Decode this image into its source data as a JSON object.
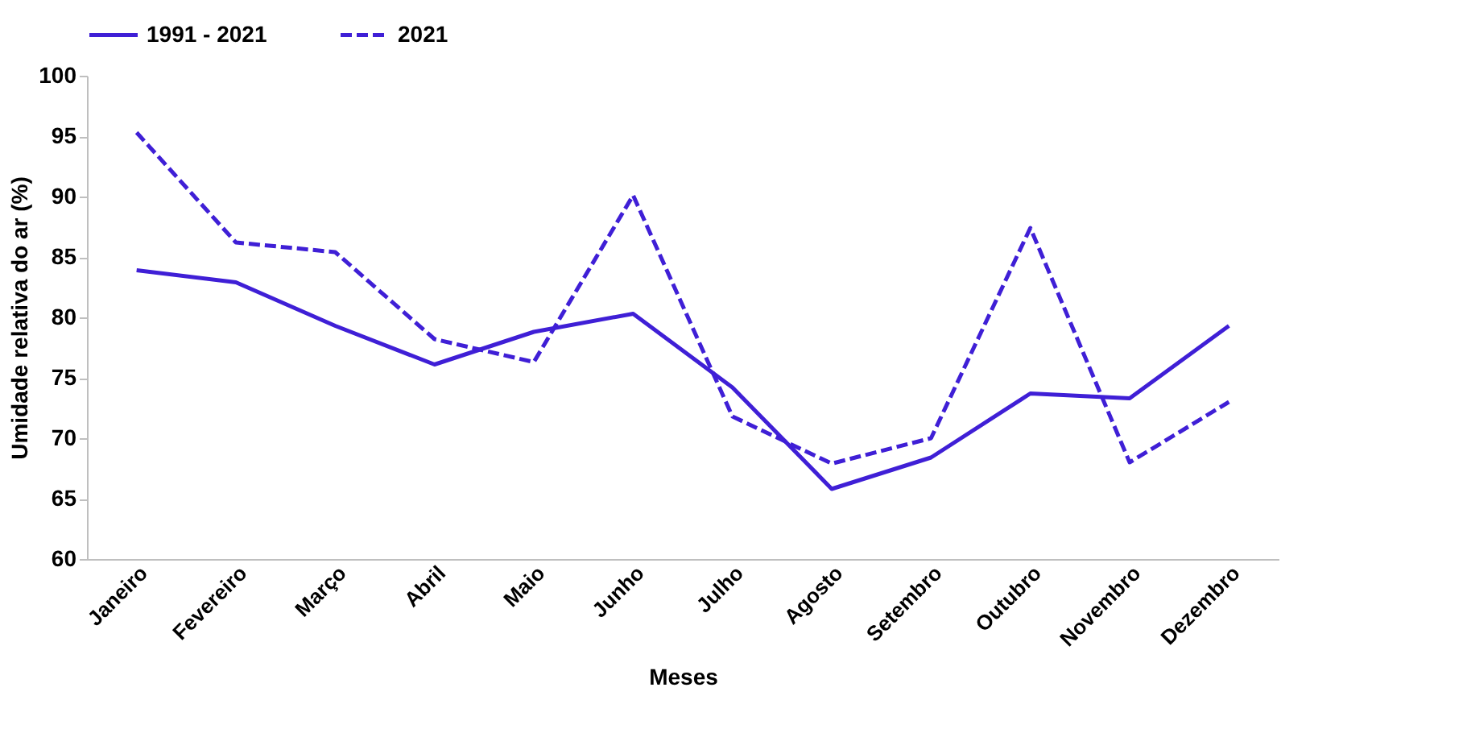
{
  "chart_data": {
    "type": "line",
    "xlabel": "Meses",
    "ylabel": "Umidade relativa do ar (%)",
    "categories": [
      "Janeiro",
      "Fevereiro",
      "Março",
      "Abril",
      "Maio",
      "Junho",
      "Julho",
      "Agosto",
      "Setembro",
      "Outubro",
      "Novembro",
      "Dezembro"
    ],
    "series": [
      {
        "name": "1991 - 2021",
        "color": "#3f1fd6",
        "line_style": "solid",
        "values": [
          83.9,
          82.9,
          79.3,
          76.1,
          78.8,
          80.3,
          74.2,
          65.8,
          68.4,
          73.7,
          73.3,
          79.3
        ]
      },
      {
        "name": "2021",
        "color": "#3f1fd6",
        "line_style": "dashed",
        "values": [
          95.3,
          86.2,
          85.4,
          78.2,
          76.3,
          90.1,
          71.8,
          67.9,
          70.0,
          87.4,
          68.0,
          73.0
        ]
      }
    ],
    "ylim": [
      60,
      100
    ],
    "yticks": [
      60,
      65,
      70,
      75,
      80,
      85,
      90,
      95,
      100
    ],
    "grid": false,
    "legend": "top",
    "marker": "none"
  }
}
